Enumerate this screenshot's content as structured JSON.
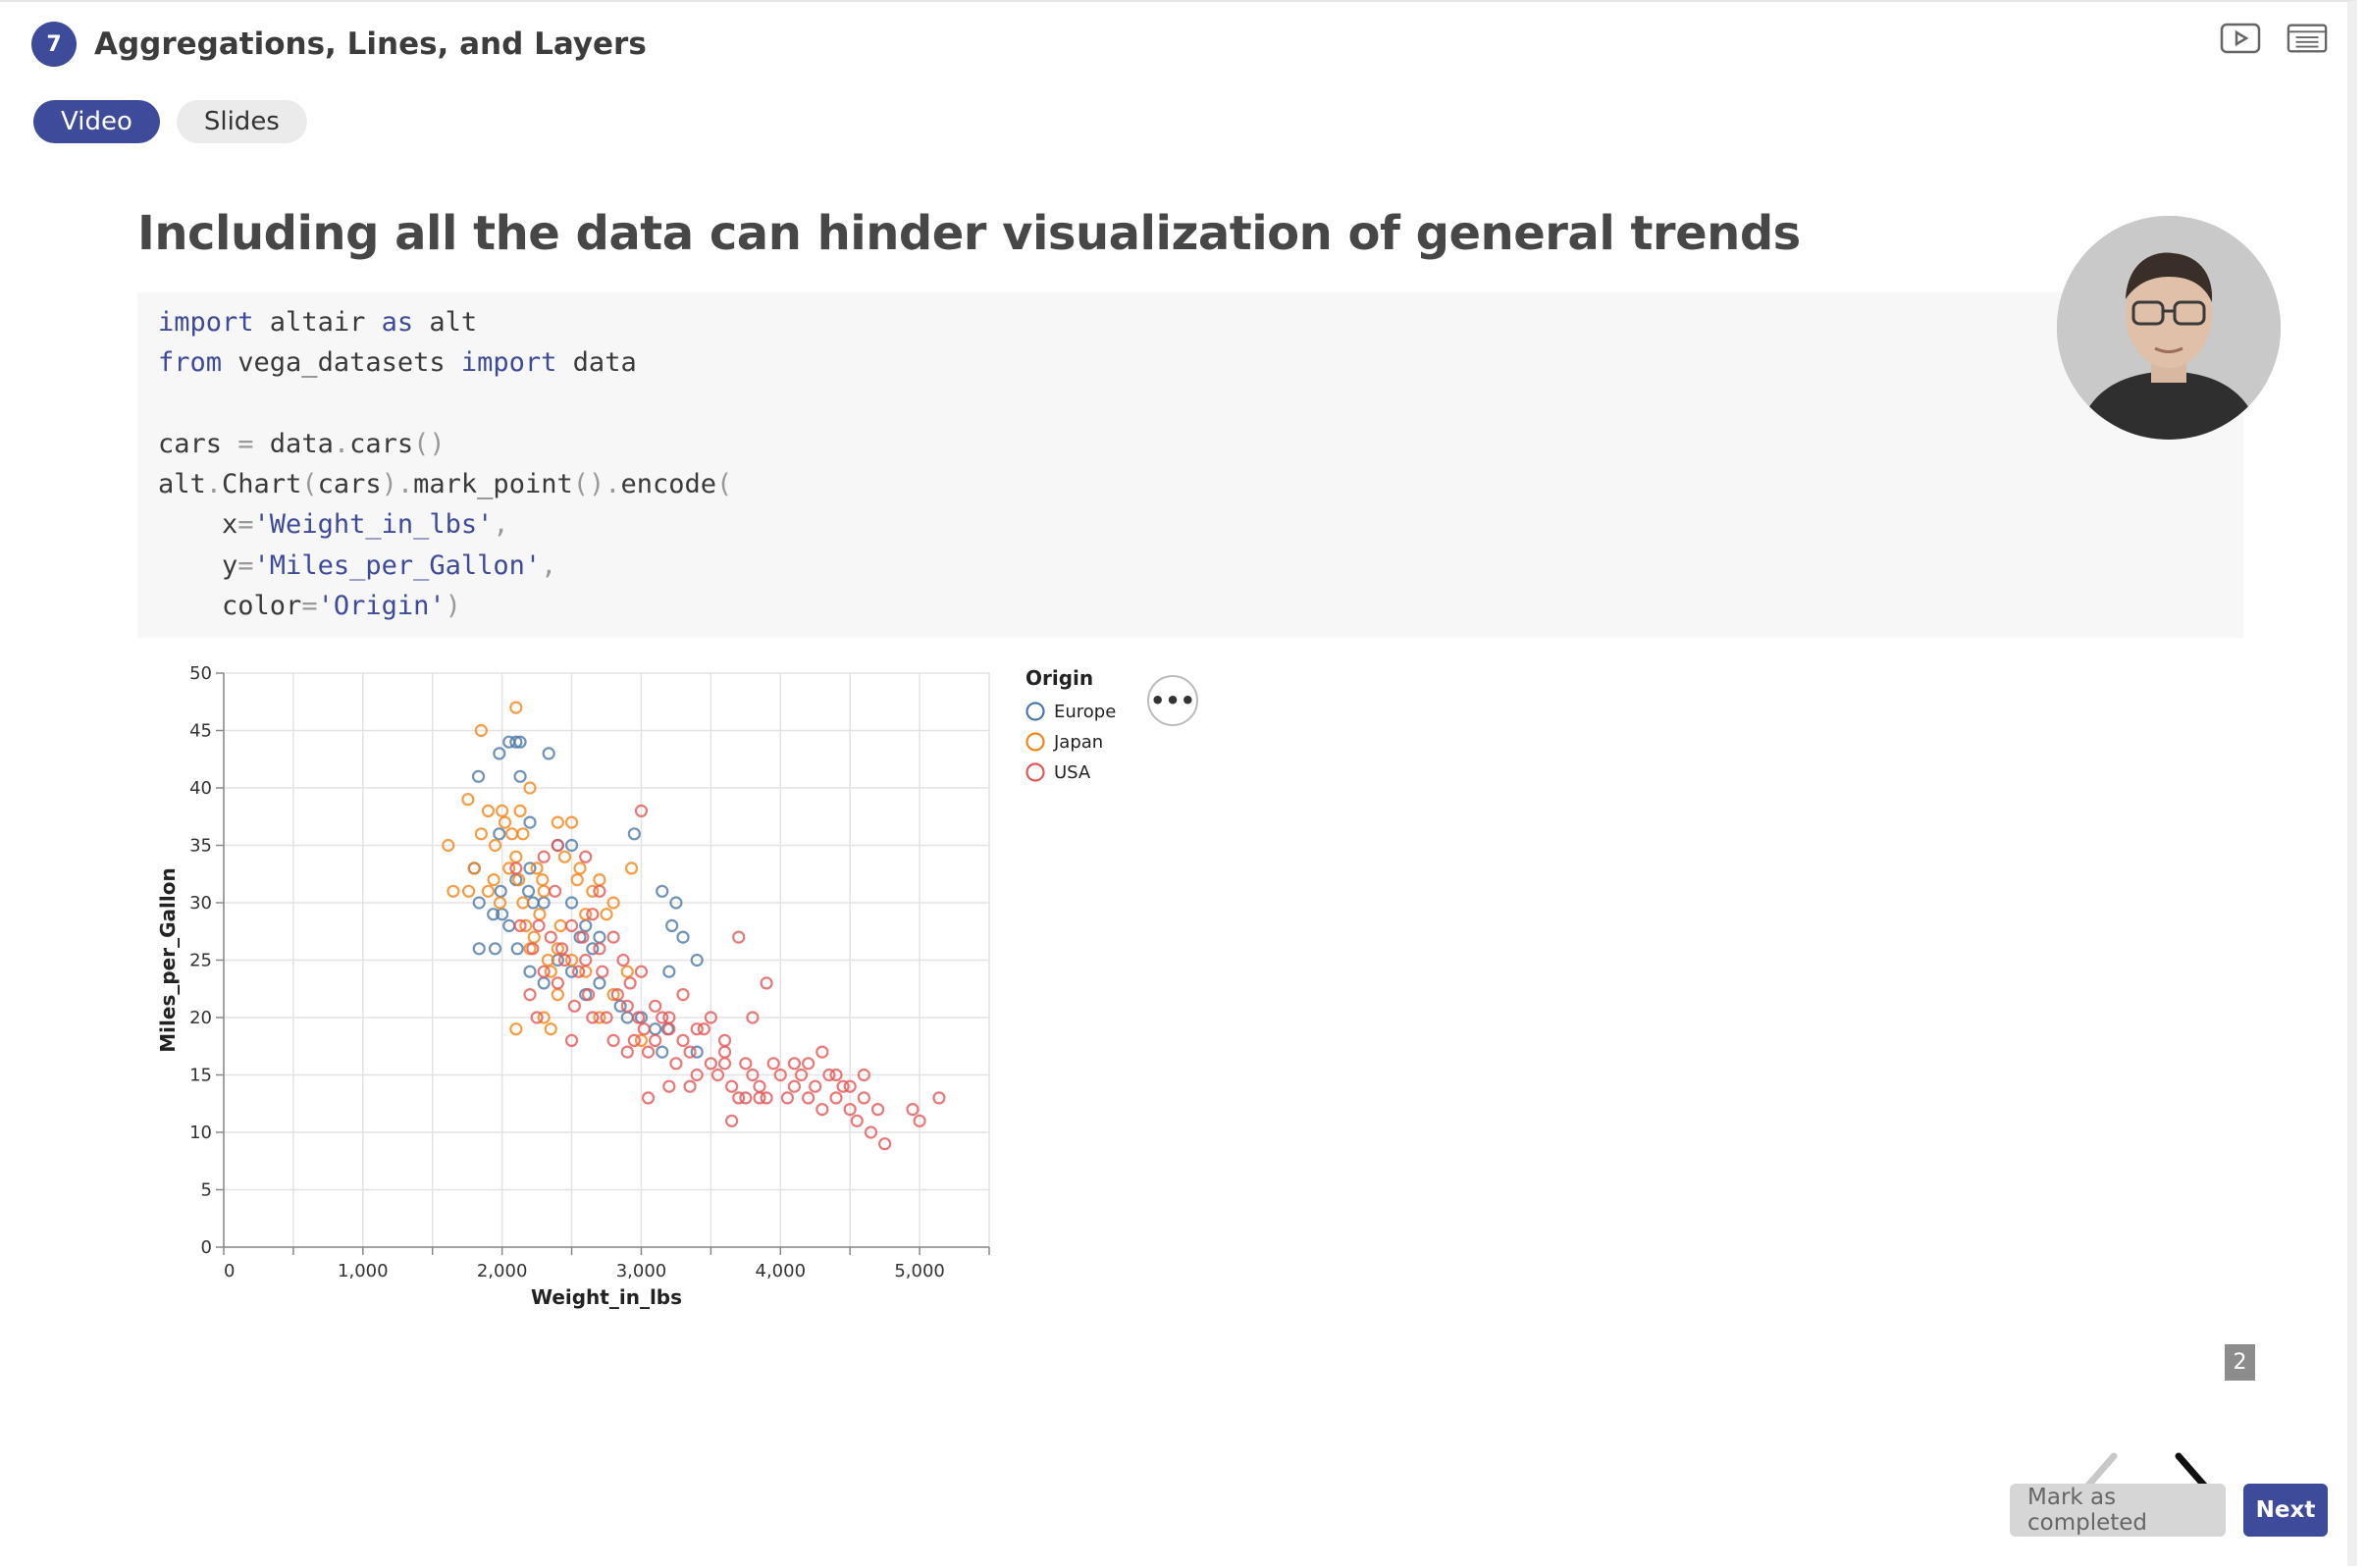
{
  "header": {
    "chapter_number": "7",
    "chapter_title": "Aggregations, Lines, and Layers",
    "icons": [
      "video-icon",
      "slides-icon"
    ]
  },
  "tabs": [
    {
      "label": "Video",
      "active": true
    },
    {
      "label": "Slides",
      "active": false
    }
  ],
  "slide": {
    "title": "Including all the data can hinder visualization of general trends",
    "code": {
      "l1_kw": "import",
      "l1_rest": " altair ",
      "l1_kw2": "as",
      "l1_tail": " alt",
      "l2_kw": "from",
      "l2_mid": " vega_datasets ",
      "l2_kw2": "import",
      "l2_tail": " data",
      "l4_a": "cars ",
      "l4_eq": "=",
      "l4_b": " data",
      "l4_dot": ".",
      "l4_c": "cars",
      "l4_p": "()",
      "l5_a": "alt",
      "l5_d1": ".",
      "l5_b": "Chart",
      "l5_p1": "(",
      "l5_c": "cars",
      "l5_p2": ")",
      "l5_d2": ".",
      "l5_e": "mark_point",
      "l5_p3": "()",
      "l5_d3": ".",
      "l5_f": "encode",
      "l5_p4": "(",
      "l6_a": "    x",
      "l6_eq": "=",
      "l6_s": "'Weight_in_lbs'",
      "l6_c": ",",
      "l7_a": "    y",
      "l7_eq": "=",
      "l7_s": "'Miles_per_Gallon'",
      "l7_c": ",",
      "l8_a": "    color",
      "l8_eq": "=",
      "l8_s": "'Origin'",
      "l8_p": ")"
    },
    "more_button_label": "•••",
    "slide_number": "2"
  },
  "footer": {
    "mark_completed_label": "Mark as completed",
    "next_label": "Next"
  },
  "colors": {
    "accent": "#3e4a9a",
    "europe": "#4c78a8",
    "japan": "#f58518",
    "usa": "#e45756"
  },
  "chart_data": {
    "type": "scatter",
    "xlabel": "Weight_in_lbs",
    "ylabel": "Miles_per_Gallon",
    "xlim": [
      0,
      5500
    ],
    "ylim": [
      0,
      50
    ],
    "x_ticks": [
      0,
      1000,
      2000,
      3000,
      4000,
      5000
    ],
    "x_tick_labels": [
      "0",
      "1,000",
      "2,000",
      "3,000",
      "4,000",
      "5,000"
    ],
    "y_ticks": [
      0,
      5,
      10,
      15,
      20,
      25,
      30,
      35,
      40,
      45,
      50
    ],
    "y_tick_labels": [
      "0",
      "5",
      "10",
      "15",
      "20",
      "25",
      "30",
      "35",
      "40",
      "45",
      "50"
    ],
    "grid": true,
    "legend": {
      "title": "Origin",
      "position": "right"
    },
    "series": [
      {
        "name": "Europe",
        "color": "#4c78a8",
        "points": [
          [
            1835,
            26
          ],
          [
            1835,
            30
          ],
          [
            1950,
            26
          ],
          [
            2110,
            26
          ],
          [
            2200,
            24
          ],
          [
            2300,
            23
          ],
          [
            2400,
            25
          ],
          [
            2500,
            24
          ],
          [
            2600,
            22
          ],
          [
            2700,
            23
          ],
          [
            2850,
            21
          ],
          [
            3000,
            20
          ],
          [
            3150,
            17
          ],
          [
            3200,
            24
          ],
          [
            3400,
            25
          ],
          [
            2223,
            30
          ],
          [
            1990,
            31
          ],
          [
            2100,
            32
          ],
          [
            2190,
            31
          ],
          [
            2000,
            29
          ],
          [
            1937,
            29
          ],
          [
            1800,
            33
          ],
          [
            1830,
            41
          ],
          [
            1980,
            43
          ],
          [
            2050,
            44
          ],
          [
            2100,
            44
          ],
          [
            2130,
            44
          ],
          [
            2335,
            43
          ],
          [
            2130,
            41
          ],
          [
            2200,
            37
          ],
          [
            2400,
            35
          ],
          [
            2500,
            30
          ],
          [
            2950,
            36
          ],
          [
            2600,
            28
          ],
          [
            2700,
            27
          ],
          [
            3150,
            31
          ],
          [
            3250,
            30
          ],
          [
            3220,
            28
          ],
          [
            3300,
            27
          ],
          [
            2900,
            20
          ],
          [
            3100,
            19
          ],
          [
            3190,
            19
          ],
          [
            3400,
            17
          ],
          [
            2560,
            27
          ],
          [
            2650,
            26
          ],
          [
            2050,
            28
          ],
          [
            2300,
            30
          ],
          [
            2500,
            35
          ],
          [
            1980,
            36
          ],
          [
            2200,
            33
          ]
        ]
      },
      {
        "name": "Japan",
        "color": "#f58518",
        "points": [
          [
            1613,
            35
          ],
          [
            1649,
            31
          ],
          [
            1755,
            39
          ],
          [
            1760,
            31
          ],
          [
            1800,
            33
          ],
          [
            1850,
            36
          ],
          [
            1900,
            31
          ],
          [
            1940,
            32
          ],
          [
            1950,
            35
          ],
          [
            1985,
            30
          ],
          [
            2000,
            38
          ],
          [
            2020,
            37
          ],
          [
            2050,
            33
          ],
          [
            2070,
            36
          ],
          [
            2100,
            34
          ],
          [
            2120,
            32
          ],
          [
            2130,
            38
          ],
          [
            2150,
            30
          ],
          [
            2170,
            28
          ],
          [
            2200,
            26
          ],
          [
            2230,
            27
          ],
          [
            2250,
            33
          ],
          [
            2270,
            29
          ],
          [
            2290,
            32
          ],
          [
            2300,
            31
          ],
          [
            2330,
            25
          ],
          [
            2350,
            24
          ],
          [
            2400,
            26
          ],
          [
            2420,
            28
          ],
          [
            2450,
            34
          ],
          [
            2500,
            37
          ],
          [
            2540,
            32
          ],
          [
            2560,
            33
          ],
          [
            2600,
            29
          ],
          [
            2650,
            31
          ],
          [
            2700,
            32
          ],
          [
            2750,
            29
          ],
          [
            2800,
            30
          ],
          [
            2930,
            33
          ],
          [
            2100,
            19
          ],
          [
            2300,
            20
          ],
          [
            2350,
            19
          ],
          [
            2400,
            22
          ],
          [
            2500,
            25
          ],
          [
            2600,
            24
          ],
          [
            2700,
            20
          ],
          [
            2800,
            22
          ],
          [
            2900,
            24
          ],
          [
            3000,
            18
          ],
          [
            2100,
            47
          ],
          [
            1850,
            45
          ],
          [
            2400,
            37
          ],
          [
            2200,
            40
          ],
          [
            2150,
            36
          ],
          [
            1900,
            38
          ]
        ]
      },
      {
        "name": "USA",
        "color": "#e45756",
        "points": [
          [
            2100,
            33
          ],
          [
            2130,
            28
          ],
          [
            2220,
            26
          ],
          [
            2264,
            28
          ],
          [
            2300,
            24
          ],
          [
            2350,
            27
          ],
          [
            2380,
            31
          ],
          [
            2400,
            23
          ],
          [
            2430,
            26
          ],
          [
            2450,
            25
          ],
          [
            2500,
            28
          ],
          [
            2520,
            21
          ],
          [
            2550,
            24
          ],
          [
            2580,
            27
          ],
          [
            2600,
            25
          ],
          [
            2620,
            22
          ],
          [
            2650,
            29
          ],
          [
            2700,
            26
          ],
          [
            2720,
            24
          ],
          [
            2750,
            20
          ],
          [
            2800,
            18
          ],
          [
            2830,
            22
          ],
          [
            2870,
            25
          ],
          [
            2900,
            21
          ],
          [
            2920,
            23
          ],
          [
            2950,
            18
          ],
          [
            2980,
            20
          ],
          [
            3000,
            24
          ],
          [
            3020,
            19
          ],
          [
            3050,
            17
          ],
          [
            3100,
            18
          ],
          [
            3150,
            20
          ],
          [
            3200,
            19
          ],
          [
            3250,
            16
          ],
          [
            3300,
            18
          ],
          [
            3350,
            17
          ],
          [
            3400,
            15
          ],
          [
            3450,
            19
          ],
          [
            3500,
            16
          ],
          [
            3550,
            15
          ],
          [
            3600,
            17
          ],
          [
            3650,
            14
          ],
          [
            3700,
            13
          ],
          [
            3750,
            16
          ],
          [
            3800,
            15
          ],
          [
            3850,
            14
          ],
          [
            3900,
            13
          ],
          [
            3950,
            16
          ],
          [
            4000,
            15
          ],
          [
            4050,
            13
          ],
          [
            4100,
            14
          ],
          [
            4150,
            15
          ],
          [
            4200,
            13
          ],
          [
            4250,
            14
          ],
          [
            4300,
            12
          ],
          [
            4350,
            15
          ],
          [
            4400,
            13
          ],
          [
            4450,
            14
          ],
          [
            4500,
            12
          ],
          [
            4550,
            11
          ],
          [
            4600,
            13
          ],
          [
            4650,
            10
          ],
          [
            4700,
            12
          ],
          [
            4750,
            9
          ],
          [
            4950,
            12
          ],
          [
            5000,
            11
          ],
          [
            5140,
            13
          ],
          [
            3000,
            38
          ],
          [
            2400,
            35
          ],
          [
            2300,
            34
          ],
          [
            2600,
            34
          ],
          [
            2700,
            31
          ],
          [
            2800,
            27
          ],
          [
            3100,
            21
          ],
          [
            3200,
            20
          ],
          [
            3300,
            22
          ],
          [
            3400,
            19
          ],
          [
            3600,
            18
          ],
          [
            3800,
            20
          ],
          [
            3900,
            23
          ],
          [
            3700,
            27
          ],
          [
            4100,
            16
          ],
          [
            4200,
            16
          ],
          [
            4300,
            17
          ],
          [
            4400,
            15
          ],
          [
            4500,
            14
          ],
          [
            4600,
            15
          ],
          [
            3200,
            14
          ],
          [
            3350,
            14
          ],
          [
            3650,
            11
          ],
          [
            2200,
            22
          ],
          [
            2250,
            20
          ],
          [
            2500,
            18
          ],
          [
            2650,
            20
          ],
          [
            2900,
            17
          ],
          [
            3050,
            13
          ],
          [
            3500,
            20
          ],
          [
            3600,
            16
          ],
          [
            3750,
            13
          ],
          [
            3850,
            13
          ]
        ]
      }
    ]
  }
}
